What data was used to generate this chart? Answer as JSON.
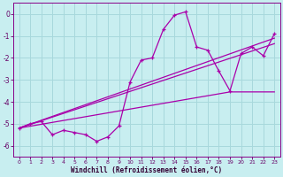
{
  "title": "",
  "xlabel": "Windchill (Refroidissement éolien,°C)",
  "ylabel": "",
  "bg_color": "#c8eef0",
  "grid_color": "#a8d8dc",
  "line_color": "#aa00aa",
  "xlim": [
    -0.5,
    23.5
  ],
  "ylim": [
    -6.5,
    0.5
  ],
  "yticks": [
    0,
    -1,
    -2,
    -3,
    -4,
    -5,
    -6
  ],
  "xticks": [
    0,
    1,
    2,
    3,
    4,
    5,
    6,
    7,
    8,
    9,
    10,
    11,
    12,
    13,
    14,
    15,
    16,
    17,
    18,
    19,
    20,
    21,
    22,
    23
  ],
  "series": [
    [
      0,
      -5.2
    ],
    [
      1,
      -5.0
    ],
    [
      2,
      -4.9
    ],
    [
      3,
      -5.5
    ],
    [
      4,
      -5.3
    ],
    [
      5,
      -5.4
    ],
    [
      6,
      -5.5
    ],
    [
      7,
      -5.8
    ],
    [
      8,
      -5.6
    ],
    [
      9,
      -5.1
    ],
    [
      10,
      -3.1
    ],
    [
      11,
      -2.1
    ],
    [
      12,
      -2.0
    ],
    [
      13,
      -0.7
    ],
    [
      14,
      -0.05
    ],
    [
      15,
      0.1
    ],
    [
      16,
      -1.5
    ],
    [
      17,
      -1.65
    ],
    [
      18,
      -2.6
    ],
    [
      19,
      -3.5
    ],
    [
      20,
      -1.8
    ],
    [
      21,
      -1.5
    ],
    [
      22,
      -1.9
    ],
    [
      23,
      -0.9
    ]
  ],
  "line_upper": [
    [
      0,
      -5.2
    ],
    [
      23,
      -1.1
    ]
  ],
  "line_mid": [
    [
      0,
      -5.2
    ],
    [
      23,
      -1.35
    ]
  ],
  "line_lower": [
    [
      0,
      -5.2
    ],
    [
      19,
      -3.55
    ],
    [
      23,
      -3.55
    ]
  ]
}
